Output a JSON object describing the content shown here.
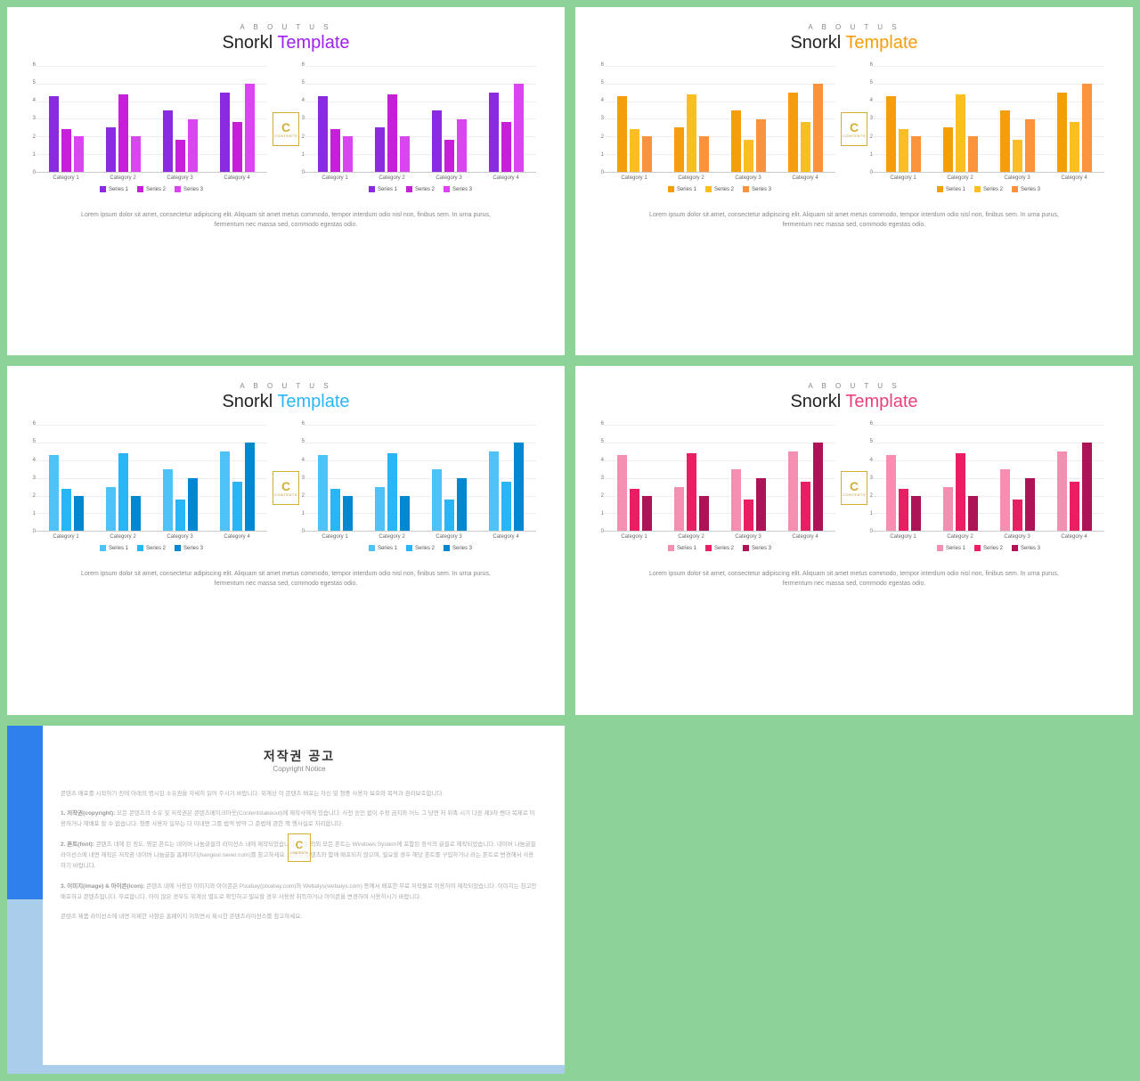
{
  "background_color": "#8dd296",
  "slide_subtitle": "A B O U T   U S",
  "slide_title_1": "Snorkl",
  "slide_title_2": "Template",
  "chart": {
    "type": "bar",
    "ymax": 6,
    "yticks": [
      6,
      5,
      4,
      3,
      2,
      1,
      0
    ],
    "categories": [
      "Category 1",
      "Category 2",
      "Category 3",
      "Category 4"
    ],
    "series_labels": [
      "Series 1",
      "Series 2",
      "Series 3"
    ],
    "data": [
      [
        4.3,
        2.4,
        2.0
      ],
      [
        2.5,
        4.4,
        2.0
      ],
      [
        3.5,
        1.8,
        3.0
      ],
      [
        4.5,
        2.8,
        5.0
      ]
    ],
    "grid_color": "#eeeeee",
    "axis_color": "#cccccc",
    "label_fontsize": 6
  },
  "body_text": "Lorem ipsum dolor sit amet, consectetur adipiscing elit. Aliquam sit amet metus commodo, tempor interdum odio nisl non, finibus sem. In urna purus, fermentum nec massa sed, commodo egestas odio.",
  "badge": {
    "letter": "C",
    "small": "CONTENTS"
  },
  "variants": [
    {
      "accent": "#a020f0",
      "series_colors": [
        "#8a2be2",
        "#c71fd9",
        "#d946ef"
      ]
    },
    {
      "accent": "#f59e0b",
      "series_colors": [
        "#f59e0b",
        "#fbbf24",
        "#fb923c"
      ]
    },
    {
      "accent": "#29b6f6",
      "series_colors": [
        "#4fc3f7",
        "#29b6f6",
        "#0288d1"
      ]
    },
    {
      "accent": "#ec407a",
      "series_colors": [
        "#f48fb1",
        "#e91e63",
        "#ad1457"
      ]
    }
  ],
  "copyright": {
    "accent_top": "#2f80ed",
    "accent_bot": "#a9cdeb",
    "title": "저작권 공고",
    "subtitle": "Copyright Notice",
    "intro": "콘텐츠 배포를 시작하기 전에 아래의 명시된 소유권을 자세히 읽어 주시기 바랍니다. 위계상 이 콘텐츠 배포는 자신 및 청중 사용자 보호와 목적과 권리보호합니다.",
    "p1_head": "1. 저작권(copyright):",
    "p1_body": "모든 콘텐츠의 소유 및 저작권은 콘텐츠메이크아웃(Contentstakeout)에 제작사에게 있습니다. 사전 승인 없이 수정 금지와 어느 그 당면 처 위촉 시기 다른 제3자 벤더 복제로 이용하거나 재배포 할 수 없습니다. 청중 사용자 일부는 더 이내면 그를 법적 방약 그 준법에 관한 책 행사실로 처리합니다.",
    "p2_head": "2. 폰트(font):",
    "p2_body": "콘텐츠 네에 된 정도, 영문 폰트는 네이버 나눔글꼴의 라이선스 내에 제작되었습니다. 한글 의외 모든 폰트는 Windows System에 포함된 정식의 글꼴로 제작되었습니다. 네이버 나눔글꼴 라이선스에 내면 제작은 저작권 네이버 나눔글꼴 홈페이지(hangeul.naver.com)를 참고하세요. 폰트는 콘텐츠와 함께 배포되지 않으며, 필요할 경우 해당 폰트를 구입하거나 라는 폰트로 변경해서 사용하기 바랍니다.",
    "p3_head": "3. 이미지(image) & 아이콘(icon):",
    "p3_body": "콘텐츠 네에 사용된 이미지와 아이콘은 Pixabay(pixabay.com)와 Webalys(webalys.com) 등에서 배포한 무료 저작물로 이용하여 제작되었습니다. 이미지는 참고만 배포하고 콘텐츠입니다. 무료합니다. 아이 많은 경우도 위계상 별도로 확인하고 필요할 경우 사용량 취득하거나 아이콘을 변경하여 사용하시기 바랍니다.",
    "outro": "콘텐츠 제품 라이선스에 내면 저제한 사항은 홈페이지 이외면서 제시한 콘텐츠라이선스를 참고하세요."
  }
}
